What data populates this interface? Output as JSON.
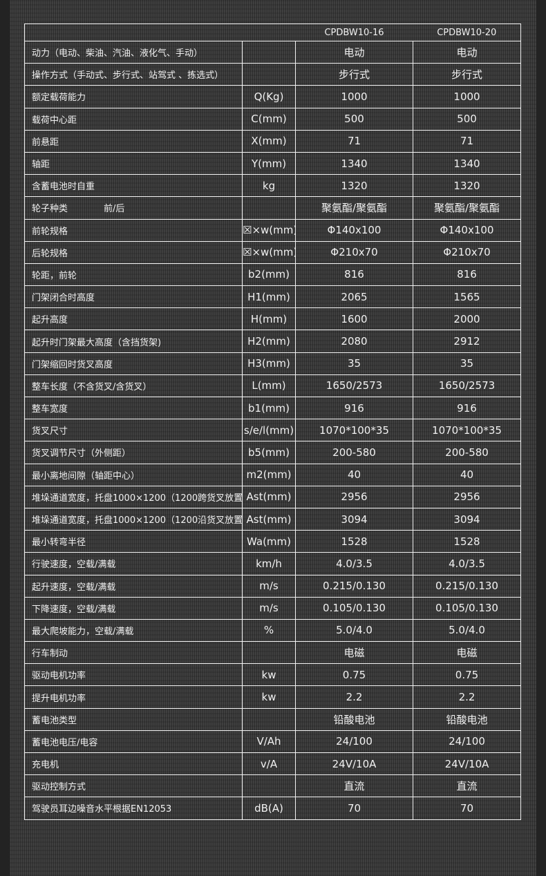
{
  "columns": [
    "CPDBW10-16",
    "CPDBW10-20"
  ],
  "rows": [
    [
      "动力（电动、柴油、汽油、液化气、手动）",
      "",
      "电动",
      "电动"
    ],
    [
      "操作方式（手动式、步行式、站驾式 、拣选式）",
      "",
      "步行式",
      "步行式"
    ],
    [
      "额定载荷能力",
      "Q(Kg)",
      "1000",
      "1000"
    ],
    [
      "载荷中心距",
      "C(mm)",
      "500",
      "500"
    ],
    [
      "前悬距",
      "X(mm)",
      "71",
      "71"
    ],
    [
      "轴距",
      "Y(mm)",
      "1340",
      "1340"
    ],
    [
      "含蓄电池时自重",
      "kg",
      "1320",
      "1320"
    ],
    [
      "轮子种类　　　　前/后",
      "",
      "聚氨酯/聚氨酯",
      "聚氨酯/聚氨酯"
    ],
    [
      "前轮规格",
      "☒×w(mm)",
      "Φ140x100",
      "Φ140x100"
    ],
    [
      "后轮规格",
      "☒×w(mm)",
      "Φ210x70",
      "Φ210x70"
    ],
    [
      "轮距，前轮",
      "b2(mm)",
      "816",
      "816"
    ],
    [
      "门架闭合时高度",
      "H1(mm)",
      "2065",
      "1565"
    ],
    [
      "起升高度",
      "H(mm)",
      "1600",
      "2000"
    ],
    [
      "起升时门架最大高度（含挡货架)",
      "H2(mm)",
      "2080",
      "2912"
    ],
    [
      "门架缩回时货叉高度",
      "H3(mm)",
      "35",
      "35"
    ],
    [
      "整车长度（不含货叉/含货叉）",
      "L(mm)",
      "1650/2573",
      "1650/2573"
    ],
    [
      "整车宽度",
      "b1(mm)",
      "916",
      "916"
    ],
    [
      "货叉尺寸",
      "s/e/l(mm)",
      "1070*100*35",
      "1070*100*35"
    ],
    [
      "货叉调节尺寸（外侧距）",
      "b5(mm)",
      "200-580",
      "200-580"
    ],
    [
      "最小离地间隙（轴距中心）",
      "m2(mm)",
      "40",
      "40"
    ],
    [
      "堆垛通道宽度，托盘1000×1200（1200跨货叉放置)",
      "Ast(mm)",
      "2956",
      "2956"
    ],
    [
      "堆垛通道宽度，托盘1000×1200（1200沿货叉放置)",
      "Ast(mm)",
      "3094",
      "3094"
    ],
    [
      "最小转弯半径",
      "Wa(mm)",
      "1528",
      "1528"
    ],
    [
      "行驶速度，空载/满载",
      "km/h",
      "4.0/3.5",
      "4.0/3.5"
    ],
    [
      "起升速度，空载/满载",
      "m/s",
      "0.215/0.130",
      "0.215/0.130"
    ],
    [
      "下降速度，空载/满载",
      "m/s",
      "0.105/0.130",
      "0.105/0.130"
    ],
    [
      "最大爬坡能力，空载/满载",
      "%",
      "5.0/4.0",
      "5.0/4.0"
    ],
    [
      "行车制动",
      "",
      "电磁",
      "电磁"
    ],
    [
      "驱动电机功率",
      "kw",
      "0.75",
      "0.75"
    ],
    [
      "提升电机功率",
      "kw",
      "2.2",
      "2.2"
    ],
    [
      "蓄电池类型",
      "",
      "铅酸电池",
      "铅酸电池"
    ],
    [
      "蓄电池电压/电容",
      "V/Ah",
      "24/100",
      "24/100"
    ],
    [
      "充电机",
      "v/A",
      "24V/10A",
      "24V/10A"
    ],
    [
      "驱动控制方式",
      "",
      "直流",
      "直流"
    ],
    [
      "驾驶员耳边噪音水平根据EN12053",
      "dB(A)",
      "70",
      "70"
    ]
  ]
}
